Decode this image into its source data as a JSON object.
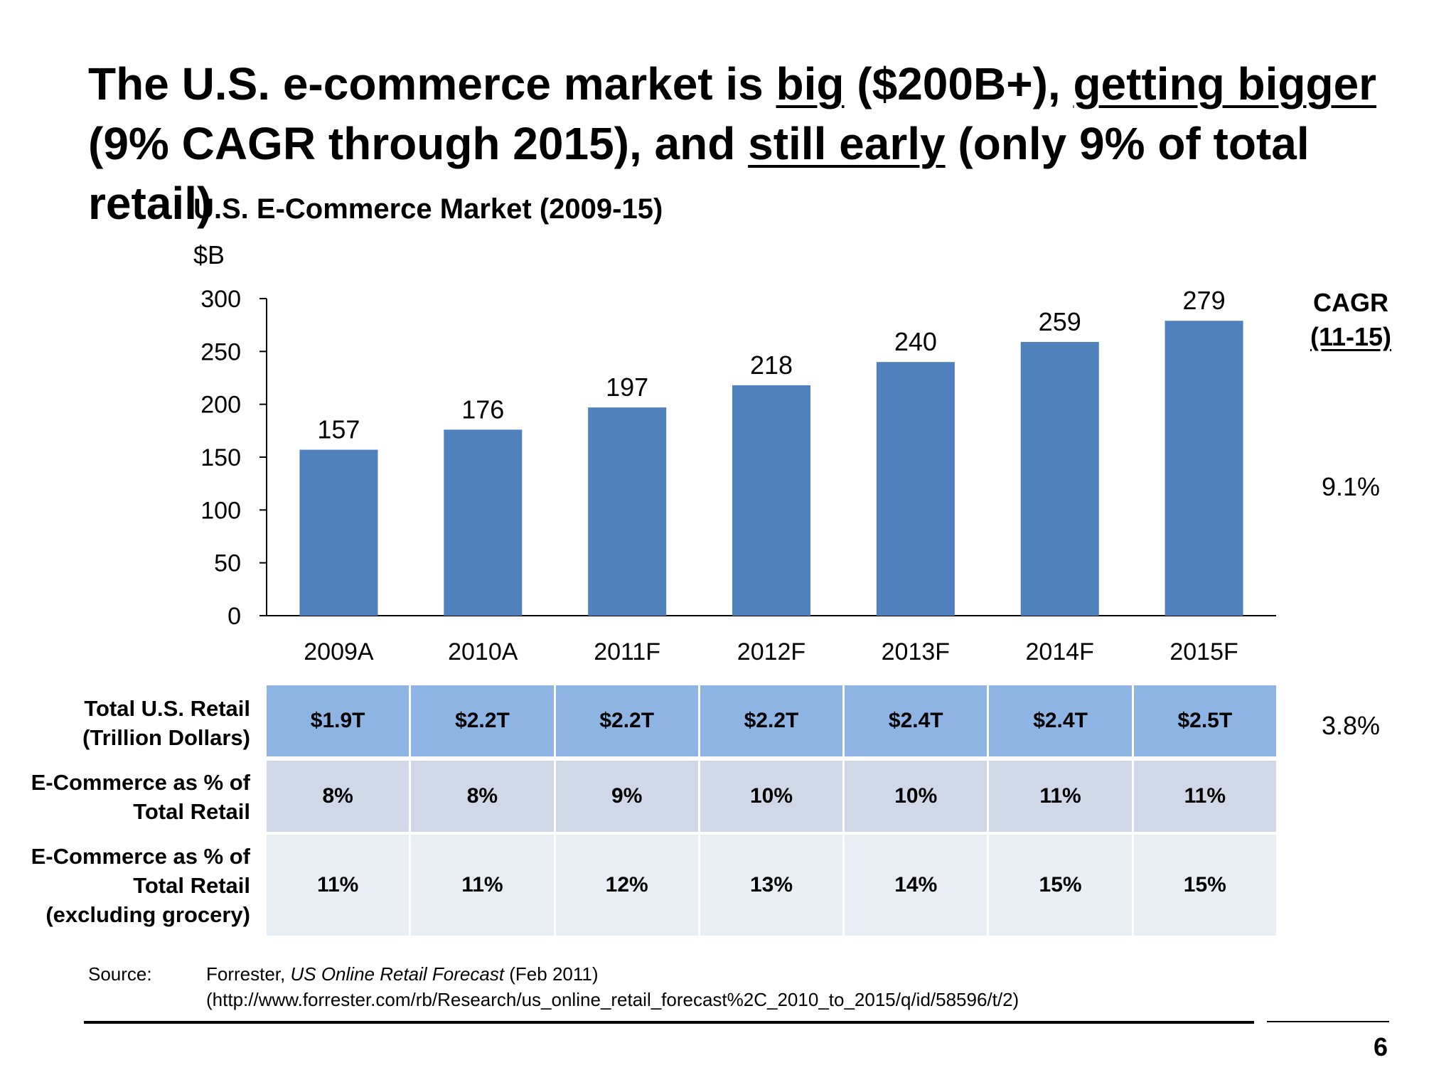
{
  "headline": {
    "part1": "The U.S. e-commerce market is ",
    "u1": "big",
    "part2": " ($200B+), ",
    "u2": "getting bigger",
    "part3": " (9% CAGR through 2015), and ",
    "u3": "still early",
    "part4": " (only 9% of total retail)"
  },
  "chart_data": {
    "type": "bar",
    "title": "U.S. E-Commerce Market (2009-15)",
    "ylabel": "$B",
    "categories": [
      "2009A",
      "2010A",
      "2011F",
      "2012F",
      "2013F",
      "2014F",
      "2015F"
    ],
    "values": [
      157,
      176,
      197,
      218,
      240,
      259,
      279
    ],
    "ylim": [
      0,
      300
    ],
    "yticks": [
      0,
      50,
      100,
      150,
      200,
      250,
      300
    ],
    "grid": false,
    "bar_color": "#4f81bd"
  },
  "cagr": {
    "heading": "CAGR",
    "subheading": "(11-15)",
    "ecommerce": "9.1%",
    "retail": "3.8%"
  },
  "table": {
    "rows": [
      {
        "label_lines": [
          "Total U.S. Retail",
          "(Trillion Dollars)"
        ],
        "values": [
          "$1.9T",
          "$2.2T",
          "$2.2T",
          "$2.2T",
          "$2.4T",
          "$2.4T",
          "$2.5T"
        ]
      },
      {
        "label_lines": [
          "E-Commerce as % of",
          "Total Retail"
        ],
        "values": [
          "8%",
          "8%",
          "9%",
          "10%",
          "10%",
          "11%",
          "11%"
        ]
      },
      {
        "label_lines": [
          "E-Commerce as % of",
          "Total Retail",
          "(excluding grocery)"
        ],
        "values": [
          "11%",
          "11%",
          "12%",
          "13%",
          "14%",
          "15%",
          "15%"
        ]
      }
    ]
  },
  "source": {
    "label": "Source:",
    "publisher": "Forrester, ",
    "report": "US Online Retail Forecast",
    "date": " (Feb 2011)",
    "url": "(http://www.forrester.com/rb/Research/us_online_retail_forecast%2C_2010_to_2015/q/id/58596/t/2)"
  },
  "page_number": "6"
}
